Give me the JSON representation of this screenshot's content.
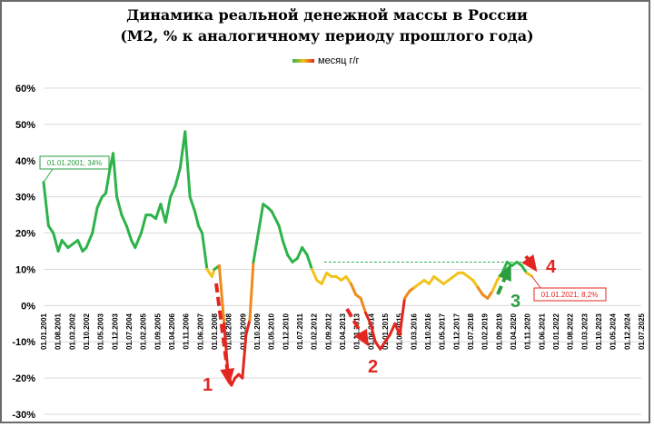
{
  "chart_data": {
    "type": "line",
    "title": "Динамика реальной денежной массы в России",
    "subtitle": "(М2, % к аналогичному периоду прошлого года)",
    "legend": [
      "месяц г/г"
    ],
    "legend_position": "top-center",
    "ylim": [
      -30,
      60
    ],
    "yticks": [
      "-30%",
      "-20%",
      "-10%",
      "0%",
      "10%",
      "20%",
      "30%",
      "40%",
      "50%",
      "60%"
    ],
    "ytick_values": [
      -30,
      -20,
      -10,
      0,
      10,
      20,
      30,
      40,
      50,
      60
    ],
    "xticks": [
      "01.01.2001",
      "01.08.2001",
      "01.03.2002",
      "01.10.2002",
      "01.05.2003",
      "01.12.2003",
      "01.07.2004",
      "01.02.2005",
      "01.09.2005",
      "01.04.2006",
      "01.11.2006",
      "01.06.2007",
      "01.01.2008",
      "01.08.2008",
      "01.03.2009",
      "01.10.2009",
      "01.05.2010",
      "01.12.2010",
      "01.07.2011",
      "01.02.2012",
      "01.09.2012",
      "01.04.2013",
      "01.11.2013",
      "01.06.2014",
      "01.01.2015",
      "01.08.2015",
      "01.03.2016",
      "01.10.2016",
      "01.05.2017",
      "01.12.2017",
      "01.07.2018",
      "01.02.2019",
      "01.09.2019",
      "01.04.2020",
      "01.11.2020",
      "01.06.2021",
      "01.01.2022",
      "01.08.2022",
      "01.03.2023",
      "01.10.2023",
      "01.05.2024",
      "01.12.2024",
      "01.07.2025"
    ],
    "grid": true,
    "series": [
      {
        "name": "месяц г/г",
        "x": [
          2001.0,
          2001.2,
          2001.4,
          2001.6,
          2001.75,
          2002.0,
          2002.2,
          2002.4,
          2002.6,
          2002.75,
          2003.0,
          2003.2,
          2003.4,
          2003.55,
          2003.7,
          2003.85,
          2004.0,
          2004.2,
          2004.4,
          2004.6,
          2004.75,
          2005.0,
          2005.2,
          2005.4,
          2005.6,
          2005.8,
          2006.0,
          2006.2,
          2006.4,
          2006.6,
          2006.8,
          2007.0,
          2007.2,
          2007.35,
          2007.5,
          2007.7,
          2007.9,
          2008.0,
          2008.2,
          2008.4,
          2008.55,
          2008.7,
          2008.85,
          2009.0,
          2009.15,
          2009.3,
          2009.45,
          2009.6,
          2009.8,
          2010.0,
          2010.2,
          2010.35,
          2010.5,
          2010.65,
          2010.8,
          2011.0,
          2011.2,
          2011.4,
          2011.6,
          2011.8,
          2012.0,
          2012.2,
          2012.4,
          2012.6,
          2012.8,
          2013.0,
          2013.2,
          2013.4,
          2013.6,
          2013.8,
          2014.0,
          2014.2,
          2014.4,
          2014.6,
          2014.8,
          2015.0,
          2015.2,
          2015.4,
          2015.6,
          2015.8,
          2016.0,
          2016.2,
          2016.4,
          2016.6,
          2016.8,
          2017.0,
          2017.2,
          2017.4,
          2017.6,
          2017.8,
          2018.0,
          2018.2,
          2018.4,
          2018.6,
          2018.8,
          2019.0,
          2019.2,
          2019.4,
          2019.6,
          2019.8,
          2020.0,
          2020.2,
          2020.4,
          2020.6,
          2020.8,
          2021.0
        ],
        "values": [
          34,
          22,
          20,
          15,
          18,
          16,
          17,
          18,
          15,
          16,
          20,
          27,
          30,
          31,
          37,
          42,
          30,
          25,
          22,
          18,
          16,
          20,
          25,
          25,
          24,
          28,
          23,
          30,
          33,
          38,
          48,
          30,
          26,
          22,
          20,
          10,
          8,
          10,
          11,
          -5,
          -18,
          -22,
          -20,
          -19,
          -20,
          -8,
          -4,
          12,
          20,
          28,
          27,
          26,
          24,
          22,
          18,
          14,
          12,
          13,
          16,
          14,
          10,
          7,
          6,
          9,
          8,
          8,
          7,
          8,
          6,
          3,
          2,
          -2,
          -5,
          -10,
          -12,
          -10,
          -8,
          -5,
          -8,
          2,
          4,
          5,
          6,
          7,
          6,
          8,
          7,
          6,
          7,
          8,
          9,
          9,
          8,
          7,
          5,
          3,
          2,
          4,
          7,
          9,
          12,
          11,
          12,
          11,
          9,
          8.2
        ]
      }
    ],
    "annotations": [
      {
        "text": "01.01.2001; 34%",
        "color": "#2a9d3f"
      },
      {
        "text": "01.01.2021; 8,2%",
        "color": "#e3261f"
      },
      {
        "text": "1",
        "color": "#e3261f"
      },
      {
        "text": "2",
        "color": "#e3261f"
      },
      {
        "text": "3",
        "color": "#2a9d3f"
      },
      {
        "text": "4",
        "color": "#e3261f"
      }
    ],
    "reference_line": {
      "value": 12,
      "style": "dashed",
      "color": "#2db34a"
    },
    "colors": {
      "green": "#2db34a",
      "yellow": "#f2c21b",
      "orange": "#f08a1c",
      "red": "#e3261f",
      "grid": "#d9d9d9"
    }
  }
}
